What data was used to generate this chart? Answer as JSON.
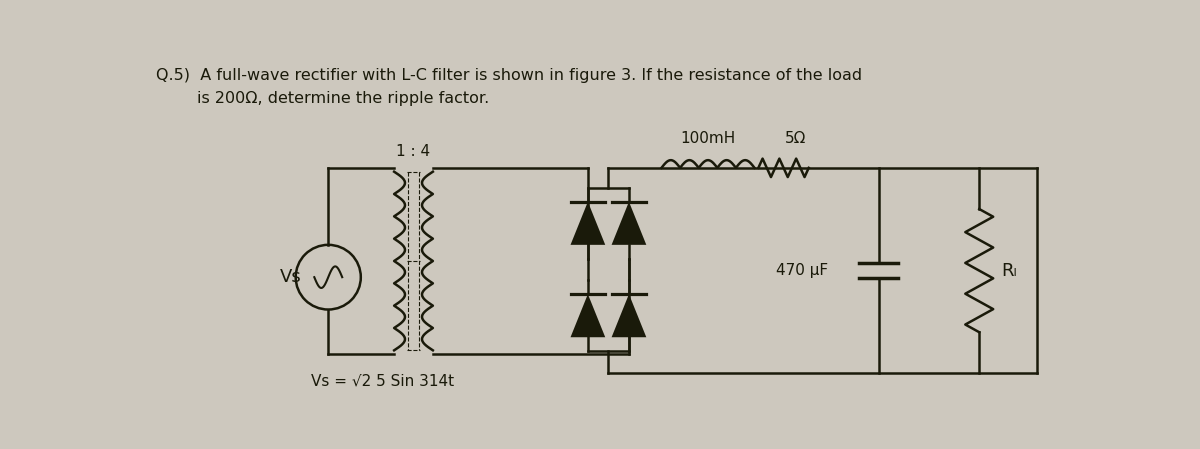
{
  "bg_color": "#cdc8be",
  "text_color": "#1a1a0a",
  "title_line1": "Q.5)  A full-wave rectifier with L-C filter is shown in figure 3. If the resistance of the load",
  "title_line2": "        is 200Ω, determine the ripple factor.",
  "label_ratio": "1 : 4",
  "label_vs": "Vs",
  "label_vs_eq": "Vs = √2 5 Sin 314t",
  "label_100mH": "100mH",
  "label_5ohm": "5Ω",
  "label_470uF": "470 μF",
  "label_RL": "Rₗ"
}
